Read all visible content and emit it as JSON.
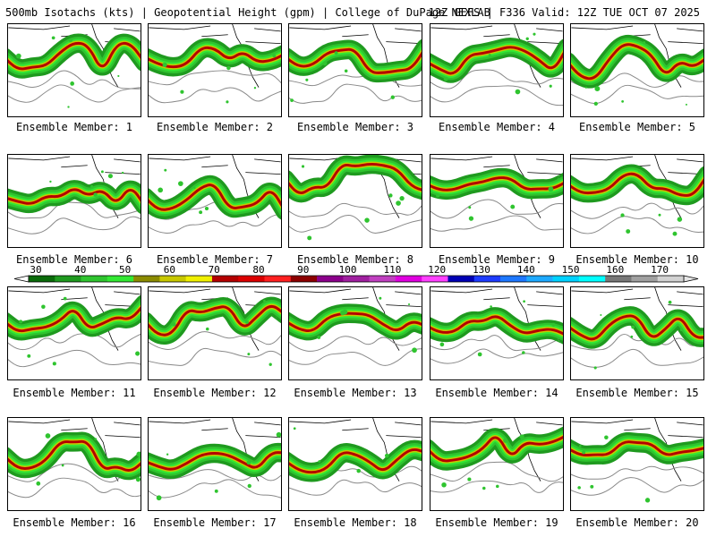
{
  "header": {
    "title": "500mb Isotachs (kts) | Geopotential Height (gpm) | College of DuPage NEXLAB",
    "run_info": "12Z GEFS | F336 Valid: 12Z TUE OCT 07 2025"
  },
  "members": [
    {
      "label": "Ensemble Member: 1"
    },
    {
      "label": "Ensemble Member: 2"
    },
    {
      "label": "Ensemble Member: 3"
    },
    {
      "label": "Ensemble Member: 4"
    },
    {
      "label": "Ensemble Member: 5"
    },
    {
      "label": "Ensemble Member: 6"
    },
    {
      "label": "Ensemble Member: 7"
    },
    {
      "label": "Ensemble Member: 8"
    },
    {
      "label": "Ensemble Member: 9"
    },
    {
      "label": "Ensemble Member: 10"
    },
    {
      "label": "Ensemble Member: 11"
    },
    {
      "label": "Ensemble Member: 12"
    },
    {
      "label": "Ensemble Member: 13"
    },
    {
      "label": "Ensemble Member: 14"
    },
    {
      "label": "Ensemble Member: 15"
    },
    {
      "label": "Ensemble Member: 16"
    },
    {
      "label": "Ensemble Member: 17"
    },
    {
      "label": "Ensemble Member: 18"
    },
    {
      "label": "Ensemble Member: 19"
    },
    {
      "label": "Ensemble Member: 20"
    }
  ],
  "legend": {
    "ticks": [
      "30",
      "40",
      "50",
      "60",
      "70",
      "80",
      "90",
      "100",
      "110",
      "120",
      "130",
      "140",
      "150",
      "160",
      "170"
    ],
    "colors": [
      "#0a6b0a",
      "#1f9a1f",
      "#2fc42f",
      "#33e833",
      "#8b8b00",
      "#c8c800",
      "#f0f000",
      "#b40000",
      "#dc0000",
      "#ff2020",
      "#8c0000",
      "#8b008b",
      "#a020a0",
      "#c040c0",
      "#e000e0",
      "#ff40ff",
      "#0000b4",
      "#1e3cff",
      "#1e78ff",
      "#1eaaff",
      "#00d2ff",
      "#00ffff",
      "#787878",
      "#a0a0a0",
      "#d2d2d2"
    ]
  }
}
